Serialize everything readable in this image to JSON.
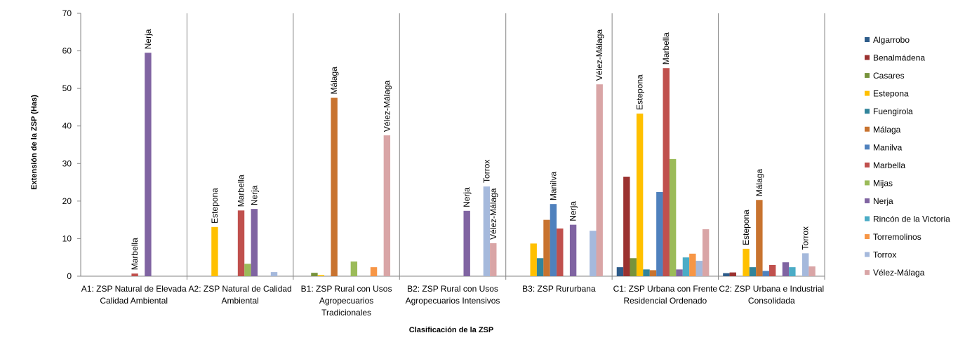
{
  "chart_data": {
    "type": "bar",
    "title": "",
    "xlabel": "Clasificación  de la ZSP",
    "ylabel": "Extensión de la ZSP (Has)",
    "ylim": [
      0,
      70
    ],
    "yticks": [
      0,
      10,
      20,
      30,
      40,
      50,
      60,
      70
    ],
    "grid": false,
    "legend_position": "right",
    "categories": [
      [
        "A1: ZSP Natural de Elevada",
        "Calidad Ambiental"
      ],
      [
        "A2: ZSP Natural de Calidad",
        "Ambiental"
      ],
      [
        "B1: ZSP Rural con Usos",
        "Agropecuarios",
        "Tradicionales"
      ],
      [
        "B2: ZSP Rural con Usos",
        "Agropecuarios Intensivos"
      ],
      [
        "B3: ZSP Rururbana"
      ],
      [
        "C1: ZSP Urbana con Frente",
        "Residencial Ordenado"
      ],
      [
        "C2: ZSP Urbana e Industrial",
        "Consolidada"
      ]
    ],
    "series": [
      {
        "name": "Algarrobo",
        "color": "#2e5c8a",
        "values": [
          0,
          0,
          0,
          0,
          0,
          2.4,
          0.8
        ]
      },
      {
        "name": "Benalmádena",
        "color": "#9b3230",
        "values": [
          0,
          0,
          0,
          0,
          0,
          26.5,
          1.0
        ]
      },
      {
        "name": "Casares",
        "color": "#77933c",
        "values": [
          0,
          0,
          0.9,
          0,
          0,
          4.8,
          0
        ]
      },
      {
        "name": "Estepona",
        "color": "#ffc000",
        "values": [
          0,
          13.1,
          0.3,
          0,
          8.7,
          43.3,
          7.3
        ]
      },
      {
        "name": "Fuengirola",
        "color": "#31849b",
        "values": [
          0,
          0,
          0,
          0,
          4.8,
          1.8,
          2.4
        ]
      },
      {
        "name": "Málaga",
        "color": "#c8732f",
        "values": [
          0,
          0,
          47.5,
          0,
          15.0,
          1.6,
          20.3
        ]
      },
      {
        "name": "Manilva",
        "color": "#4f81bd",
        "values": [
          0,
          0,
          0,
          0,
          19.2,
          22.4,
          1.4
        ]
      },
      {
        "name": "Marbella",
        "color": "#c0504d",
        "values": [
          0.7,
          17.5,
          0,
          0,
          12.7,
          55.4,
          3.0
        ]
      },
      {
        "name": "Mijas",
        "color": "#9bbb59",
        "values": [
          0,
          3.3,
          3.9,
          0,
          0,
          31.2,
          0
        ]
      },
      {
        "name": "Nerja",
        "color": "#8064a2",
        "values": [
          59.5,
          17.9,
          0,
          17.4,
          13.7,
          1.8,
          3.7
        ]
      },
      {
        "name": "Rincón de la Victoria",
        "color": "#4bacc6",
        "values": [
          0,
          0,
          0,
          0,
          0,
          5.0,
          2.4
        ]
      },
      {
        "name": "Torremolinos",
        "color": "#f79646",
        "values": [
          0,
          0,
          2.4,
          0,
          0,
          6.0,
          0
        ]
      },
      {
        "name": "Torrox",
        "color": "#a5b9dc",
        "values": [
          0,
          1.1,
          0,
          23.9,
          12.1,
          4.1,
          6.1
        ]
      },
      {
        "name": "Vélez-Málaga",
        "color": "#d9a5a6",
        "values": [
          0,
          0,
          37.5,
          8.8,
          51.1,
          12.5,
          2.6
        ]
      }
    ],
    "annotations": [
      {
        "category": 0,
        "series": "Marbella",
        "text": "Marbella"
      },
      {
        "category": 0,
        "series": "Nerja",
        "text": "Nerja"
      },
      {
        "category": 1,
        "series": "Estepona",
        "text": "Estepona"
      },
      {
        "category": 1,
        "series": "Marbella",
        "text": "Marbella"
      },
      {
        "category": 1,
        "series": "Nerja",
        "text": "Nerja"
      },
      {
        "category": 2,
        "series": "Málaga",
        "text": "Málaga"
      },
      {
        "category": 2,
        "series": "Vélez-Málaga",
        "text": "Vélez-Málaga"
      },
      {
        "category": 3,
        "series": "Nerja",
        "text": "Nerja"
      },
      {
        "category": 3,
        "series": "Torrox",
        "text": "Torrox"
      },
      {
        "category": 3,
        "series": "Vélez-Málaga",
        "text": "Vélez-Málaga"
      },
      {
        "category": 4,
        "series": "Manilva",
        "text": "Manilva"
      },
      {
        "category": 4,
        "series": "Nerja",
        "text": "Nerja"
      },
      {
        "category": 4,
        "series": "Vélez-Málaga",
        "text": "Vélez-Málaga"
      },
      {
        "category": 5,
        "series": "Estepona",
        "text": "Estepona"
      },
      {
        "category": 5,
        "series": "Marbella",
        "text": "Marbella"
      },
      {
        "category": 6,
        "series": "Estepona",
        "text": "Estepona"
      },
      {
        "category": 6,
        "series": "Málaga",
        "text": "Málaga"
      },
      {
        "category": 6,
        "series": "Torrox",
        "text": "Torrox"
      }
    ]
  }
}
